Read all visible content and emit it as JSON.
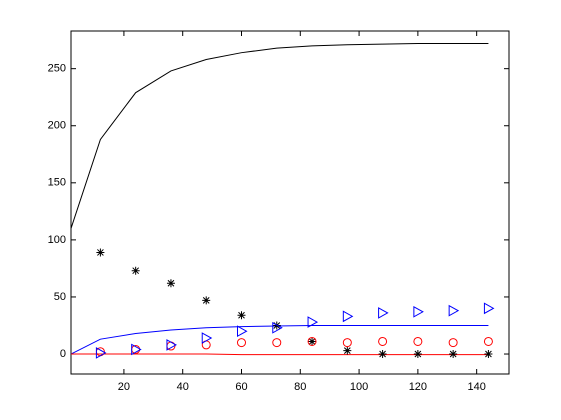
{
  "chart_data": {
    "type": "line",
    "xlim": [
      2,
      151
    ],
    "ylim": [
      -17.5,
      283
    ],
    "xticks": [
      20,
      40,
      60,
      80,
      100,
      120,
      140
    ],
    "yticks": [
      0,
      50,
      100,
      150,
      200,
      250
    ],
    "grid": false,
    "series": [
      {
        "color": "#000000",
        "marker": "none",
        "x": [
          2,
          12,
          24,
          36,
          48,
          60,
          72,
          84,
          96,
          108,
          120,
          132,
          144
        ],
        "values": [
          110,
          188,
          229,
          248,
          258,
          264,
          268,
          270,
          271,
          271.5,
          272,
          272,
          272
        ]
      },
      {
        "color": "#0000ff",
        "marker": "none",
        "x": [
          2,
          12,
          24,
          36,
          48,
          60,
          72,
          84,
          96,
          108,
          120,
          132,
          144
        ],
        "values": [
          0,
          13,
          18,
          21,
          23,
          24,
          24.5,
          25,
          25,
          25,
          25,
          25,
          25
        ]
      },
      {
        "color": "#ff0000",
        "marker": "none",
        "x": [
          2,
          12,
          24,
          36,
          48,
          60,
          72,
          84,
          96,
          108,
          120,
          132,
          144
        ],
        "values": [
          0,
          0,
          0,
          0,
          0,
          -0.5,
          -0.5,
          -0.5,
          -0.5,
          -0.5,
          -0.5,
          -0.5,
          -0.5
        ]
      },
      {
        "color": "#000000",
        "marker": "star",
        "x": [
          12,
          24,
          36,
          48,
          60,
          72,
          84,
          96,
          108,
          120,
          132,
          144
        ],
        "values": [
          89,
          73,
          62,
          47,
          34,
          25,
          11,
          3,
          0,
          0,
          0,
          0
        ]
      },
      {
        "color": "#ff0000",
        "marker": "circle",
        "x": [
          12,
          24,
          36,
          48,
          60,
          72,
          84,
          96,
          108,
          120,
          132,
          144
        ],
        "values": [
          2,
          4,
          7,
          8,
          10,
          10,
          11,
          10,
          11,
          11,
          10,
          11
        ]
      },
      {
        "color": "#0000ff",
        "marker": "triangle-right",
        "x": [
          12,
          24,
          36,
          48,
          60,
          72,
          84,
          96,
          108,
          120,
          132,
          144
        ],
        "values": [
          1,
          4,
          8,
          14,
          20,
          23,
          28,
          33,
          36,
          37,
          38,
          40
        ]
      }
    ]
  }
}
